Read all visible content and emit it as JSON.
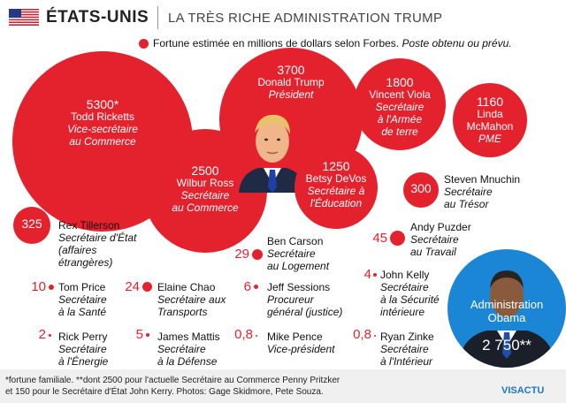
{
  "header": {
    "country": "ÉTATS-UNIS",
    "subtitle": "LA TRÈS RICHE ADMINISTRATION TRUMP"
  },
  "legend": {
    "text": "Fortune estimée en millions de dollars selon Forbes.",
    "note": "Poste obtenu ou prévu."
  },
  "colors": {
    "accent": "#e4222e",
    "obama_circle": "#1b86d6",
    "logo": "#1b77c9"
  },
  "chart_data": {
    "type": "bubble",
    "unit": "millions de dollars",
    "series": [
      {
        "name": "Todd Ricketts",
        "role": "Vice-secrétaire au Commerce",
        "value": 5300,
        "label": "5300*"
      },
      {
        "name": "Donald Trump",
        "role": "Président",
        "value": 3700,
        "label": "3700"
      },
      {
        "name": "Vincent Viola",
        "role": "Secrétaire à l'Armée de terre",
        "value": 1800,
        "label": "1800"
      },
      {
        "name": "Linda McMahon",
        "role": "PME",
        "value": 1160,
        "label": "1160"
      },
      {
        "name": "Wilbur Ross",
        "role": "Secrétaire au Commerce",
        "value": 2500,
        "label": "2500"
      },
      {
        "name": "Betsy DeVos",
        "role": "Secrétaire à l'Éducation",
        "value": 1250,
        "label": "1250"
      },
      {
        "name": "Steven Mnuchin",
        "role": "Secrétaire au Trésor",
        "value": 300,
        "label": "300"
      },
      {
        "name": "Rex Tillerson",
        "role": "Secrétaire d'État (affaires étrangères)",
        "value": 325,
        "label": "325"
      },
      {
        "name": "Ben Carson",
        "role": "Secrétaire au Logement",
        "value": 29,
        "label": "29"
      },
      {
        "name": "Andy Puzder",
        "role": "Secrétaire au Travail",
        "value": 45,
        "label": "45"
      },
      {
        "name": "Tom Price",
        "role": "Secrétaire à la Santé",
        "value": 10,
        "label": "10"
      },
      {
        "name": "Elaine Chao",
        "role": "Secrétaire aux Transports",
        "value": 24,
        "label": "24"
      },
      {
        "name": "Jeff Sessions",
        "role": "Procureur général (justice)",
        "value": 6,
        "label": "6"
      },
      {
        "name": "John Kelly",
        "role": "Secrétaire à la Sécurité intérieure",
        "value": 4,
        "label": "4"
      },
      {
        "name": "Rick Perry",
        "role": "Secrétaire à l'Énergie",
        "value": 2,
        "label": "2"
      },
      {
        "name": "James Mattis",
        "role": "Secrétaire à la Défense",
        "value": 5,
        "label": "5"
      },
      {
        "name": "Mike Pence",
        "role": "Vice-président",
        "value": 0.8,
        "label": "0,8"
      },
      {
        "name": "Ryan Zinke",
        "role": "Secrétaire à l'Intérieur",
        "value": 0.8,
        "label": "0,8"
      }
    ],
    "comparison": {
      "name": "Administration Obama",
      "value": 2750,
      "label": "2 750**"
    }
  },
  "footer": {
    "line1": "*fortune familiale. **dont 2500 pour l'actuelle Secrétaire au Commerce Penny Pritzker",
    "line2": "et 150 pour le Secrétaire d'État John Kerry. Photos: Gage Skidmore, Pete Souza.",
    "logo": "VISACTU"
  }
}
